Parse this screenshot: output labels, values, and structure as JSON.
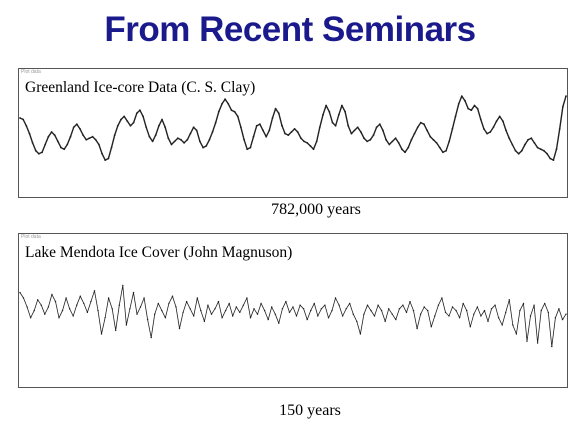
{
  "slide": {
    "title": "From Recent Seminars"
  },
  "chart_data": [
    {
      "type": "line",
      "tag": "Plot data",
      "title": "Greenland Ice-core Data (C. S. Clay)",
      "xlabel": "782,000 years",
      "ylabel": "",
      "grid": false,
      "series": [
        {
          "values": [
            0.68,
            0.66,
            0.58,
            0.48,
            0.36,
            0.26,
            0.22,
            0.24,
            0.34,
            0.44,
            0.5,
            0.46,
            0.38,
            0.3,
            0.28,
            0.34,
            0.44,
            0.56,
            0.6,
            0.54,
            0.46,
            0.4,
            0.42,
            0.44,
            0.4,
            0.34,
            0.22,
            0.14,
            0.16,
            0.3,
            0.46,
            0.58,
            0.66,
            0.7,
            0.64,
            0.58,
            0.62,
            0.74,
            0.78,
            0.7,
            0.56,
            0.44,
            0.38,
            0.46,
            0.58,
            0.66,
            0.56,
            0.42,
            0.34,
            0.38,
            0.42,
            0.4,
            0.36,
            0.4,
            0.48,
            0.56,
            0.52,
            0.38,
            0.3,
            0.32,
            0.4,
            0.5,
            0.62,
            0.76,
            0.86,
            0.92,
            0.86,
            0.78,
            0.76,
            0.7,
            0.56,
            0.4,
            0.28,
            0.3,
            0.44,
            0.58,
            0.6,
            0.52,
            0.44,
            0.52,
            0.68,
            0.8,
            0.74,
            0.58,
            0.48,
            0.46,
            0.5,
            0.54,
            0.5,
            0.42,
            0.38,
            0.36,
            0.32,
            0.28,
            0.38,
            0.56,
            0.72,
            0.84,
            0.76,
            0.62,
            0.58,
            0.72,
            0.84,
            0.76,
            0.58,
            0.48,
            0.52,
            0.56,
            0.5,
            0.42,
            0.38,
            0.4,
            0.46,
            0.56,
            0.6,
            0.52,
            0.4,
            0.34,
            0.38,
            0.42,
            0.36,
            0.28,
            0.24,
            0.3,
            0.4,
            0.48,
            0.56,
            0.62,
            0.6,
            0.52,
            0.44,
            0.4,
            0.36,
            0.3,
            0.24,
            0.26,
            0.38,
            0.54,
            0.7,
            0.86,
            0.96,
            0.9,
            0.8,
            0.78,
            0.84,
            0.8,
            0.66,
            0.54,
            0.48,
            0.5,
            0.56,
            0.64,
            0.7,
            0.64,
            0.52,
            0.42,
            0.34,
            0.26,
            0.22,
            0.26,
            0.34,
            0.4,
            0.42,
            0.36,
            0.3,
            0.28,
            0.26,
            0.22,
            0.16,
            0.14,
            0.28,
            0.54,
            0.82,
            0.96
          ]
        }
      ]
    },
    {
      "type": "line",
      "tag": "Plot data",
      "title": "Lake Mendota Ice Cover (John Magnuson)",
      "xlabel": "150 years",
      "ylabel": "",
      "grid": false,
      "series": [
        {
          "values": [
            0.76,
            0.7,
            0.6,
            0.48,
            0.56,
            0.68,
            0.62,
            0.52,
            0.6,
            0.74,
            0.66,
            0.48,
            0.56,
            0.7,
            0.58,
            0.5,
            0.62,
            0.72,
            0.64,
            0.54,
            0.66,
            0.78,
            0.56,
            0.3,
            0.48,
            0.7,
            0.58,
            0.34,
            0.62,
            0.84,
            0.4,
            0.58,
            0.76,
            0.52,
            0.6,
            0.7,
            0.46,
            0.26,
            0.52,
            0.64,
            0.56,
            0.48,
            0.64,
            0.72,
            0.6,
            0.36,
            0.54,
            0.66,
            0.58,
            0.5,
            0.7,
            0.56,
            0.44,
            0.62,
            0.52,
            0.58,
            0.66,
            0.48,
            0.56,
            0.64,
            0.5,
            0.6,
            0.54,
            0.62,
            0.7,
            0.48,
            0.58,
            0.52,
            0.64,
            0.56,
            0.46,
            0.6,
            0.52,
            0.42,
            0.58,
            0.66,
            0.54,
            0.6,
            0.5,
            0.62,
            0.58,
            0.46,
            0.56,
            0.64,
            0.5,
            0.58,
            0.62,
            0.48,
            0.56,
            0.7,
            0.62,
            0.5,
            0.58,
            0.64,
            0.52,
            0.44,
            0.3,
            0.52,
            0.62,
            0.56,
            0.5,
            0.62,
            0.56,
            0.44,
            0.58,
            0.52,
            0.46,
            0.58,
            0.62,
            0.54,
            0.66,
            0.56,
            0.36,
            0.52,
            0.6,
            0.56,
            0.38,
            0.5,
            0.62,
            0.7,
            0.54,
            0.5,
            0.6,
            0.56,
            0.48,
            0.64,
            0.56,
            0.38,
            0.52,
            0.6,
            0.5,
            0.56,
            0.44,
            0.58,
            0.62,
            0.48,
            0.4,
            0.54,
            0.68,
            0.4,
            0.3,
            0.56,
            0.64,
            0.22,
            0.5,
            0.62,
            0.2,
            0.56,
            0.64,
            0.54,
            0.16,
            0.48,
            0.58,
            0.46,
            0.52
          ]
        }
      ]
    }
  ]
}
